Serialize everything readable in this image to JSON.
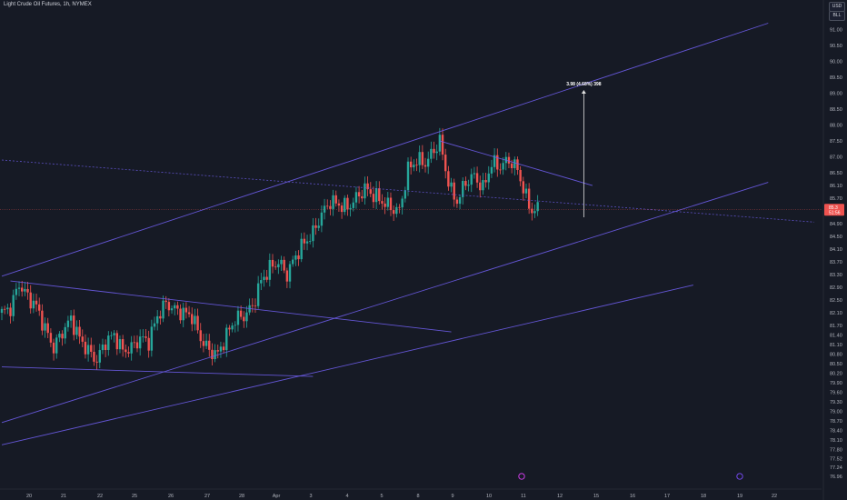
{
  "title": "Light Crude Oil Futures, 1h, NYMEX",
  "currency_badge": "USD",
  "unit_badge": "BLL",
  "colors": {
    "background": "#161a25",
    "up_candle": "#26a69a",
    "down_candle": "#ef5350",
    "trendline": "#6c5ce7",
    "current_price_line": "#ef5350",
    "measure_line": "#e0e0e0"
  },
  "icons": [
    "earnings-marker-icon",
    "event-marker-icon"
  ],
  "chart_data": {
    "type": "candlestick",
    "title": "Light Crude Oil Futures, 1h, NYMEX",
    "xlabel": "",
    "ylabel": "",
    "ylim": [
      76.96,
      91.3
    ],
    "grid": false,
    "y_ticks": [
      "91.00",
      "90.50",
      "90.00",
      "89.50",
      "89.00",
      "88.50",
      "88.00",
      "87.50",
      "87.00",
      "86.50",
      "86.10",
      "85.70",
      "84.90",
      "84.50",
      "84.10",
      "83.70",
      "83.30",
      "82.90",
      "82.50",
      "82.10",
      "81.70",
      "81.40",
      "81.10",
      "80.80",
      "80.50",
      "80.20",
      "79.90",
      "79.60",
      "79.30",
      "79.00",
      "78.70",
      "78.40",
      "78.10",
      "77.80",
      "77.52",
      "77.24",
      "76.96"
    ],
    "x_ticks": [
      "20",
      "21",
      "22",
      "25",
      "26",
      "27",
      "28",
      "Apr",
      "3",
      "4",
      "5",
      "8",
      "9",
      "10",
      "11",
      "12",
      "15",
      "16",
      "17",
      "18",
      "19",
      "22"
    ],
    "last_price": "85.3",
    "last_price_sub": "51:56",
    "measure_annotation": "3.98 (4.68%) 398",
    "price_path": [
      [
        0,
        82.1
      ],
      [
        3,
        82.25
      ],
      [
        6,
        83.0
      ],
      [
        9,
        82.6
      ],
      [
        12,
        82.3
      ],
      [
        15,
        81.6
      ],
      [
        18,
        81.0
      ],
      [
        21,
        81.5
      ],
      [
        24,
        81.9
      ],
      [
        27,
        81.3
      ],
      [
        30,
        80.9
      ],
      [
        33,
        80.6
      ],
      [
        36,
        81.2
      ],
      [
        39,
        81.4
      ],
      [
        42,
        80.9
      ],
      [
        45,
        81.0
      ],
      [
        48,
        81.3
      ],
      [
        51,
        81.2
      ],
      [
        54,
        82.0
      ],
      [
        57,
        82.4
      ],
      [
        60,
        82.2
      ],
      [
        63,
        82.1
      ],
      [
        66,
        82.0
      ],
      [
        69,
        81.3
      ],
      [
        72,
        80.9
      ],
      [
        75,
        80.8
      ],
      [
        78,
        81.4
      ],
      [
        81,
        81.9
      ],
      [
        84,
        82.0
      ],
      [
        87,
        82.3
      ],
      [
        90,
        83.1
      ],
      [
        93,
        83.5
      ],
      [
        96,
        83.7
      ],
      [
        99,
        83.3
      ],
      [
        102,
        83.9
      ],
      [
        105,
        84.3
      ],
      [
        108,
        84.6
      ],
      [
        111,
        85.2
      ],
      [
        114,
        85.6
      ],
      [
        117,
        85.5
      ],
      [
        120,
        85.4
      ],
      [
        123,
        85.7
      ],
      [
        126,
        86.0
      ],
      [
        129,
        85.8
      ],
      [
        132,
        85.6
      ],
      [
        135,
        85.4
      ],
      [
        138,
        85.3
      ],
      [
        141,
        86.6
      ],
      [
        144,
        86.9
      ],
      [
        147,
        86.8
      ],
      [
        150,
        87.2
      ],
      [
        152,
        87.5
      ],
      [
        154,
        86.6
      ],
      [
        156,
        85.9
      ],
      [
        158,
        85.6
      ],
      [
        161,
        86.2
      ],
      [
        164,
        86.4
      ],
      [
        167,
        86.0
      ],
      [
        170,
        86.8
      ],
      [
        173,
        86.7
      ],
      [
        176,
        86.9
      ],
      [
        179,
        86.6
      ],
      [
        182,
        85.7
      ],
      [
        184,
        85.3
      ],
      [
        186,
        85.35
      ]
    ],
    "trendlines": [
      {
        "name": "channel-upper",
        "from": [
          0,
          83.25
        ],
        "to": [
          266,
          91.2
        ]
      },
      {
        "name": "wedge-top",
        "from": [
          152,
          87.5
        ],
        "to": [
          205,
          86.1
        ]
      },
      {
        "name": "channel-lower",
        "from": [
          0,
          78.65
        ],
        "to": [
          266,
          86.2
        ]
      },
      {
        "name": "support-long",
        "from": [
          0,
          77.95
        ],
        "to": [
          240,
          82.97
        ]
      },
      {
        "name": "pennant-upper",
        "from": [
          3,
          83.1
        ],
        "to": [
          156,
          81.5
        ]
      },
      {
        "name": "pennant-lower",
        "from": [
          0,
          80.4
        ],
        "to": [
          108,
          80.1
        ]
      }
    ],
    "dashed_line": {
      "from": [
        0,
        86.9
      ],
      "to": [
        282,
        84.95
      ]
    },
    "measure": {
      "x": 202,
      "from": 85.1,
      "to": 89.1
    }
  }
}
